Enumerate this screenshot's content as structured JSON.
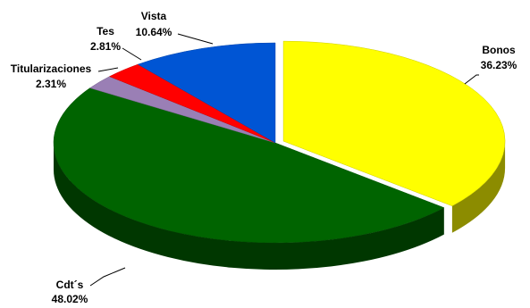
{
  "chart_data": {
    "type": "pie",
    "title": "",
    "slices": [
      {
        "name": "Bonos",
        "value": 36.23,
        "label": "36.23%",
        "color": "#FFFF00"
      },
      {
        "name": "Cdt´s",
        "value": 48.02,
        "label": "48.02%",
        "color": "#006400"
      },
      {
        "name": "Titularizaciones",
        "value": 2.31,
        "label": "2.31%",
        "color": "#9A7FB5"
      },
      {
        "name": "Tes",
        "value": 2.81,
        "label": "2.81%",
        "color": "#FF0000"
      },
      {
        "name": "Vista",
        "value": 10.64,
        "label": "10.64%",
        "color": "#0055D4"
      }
    ]
  }
}
